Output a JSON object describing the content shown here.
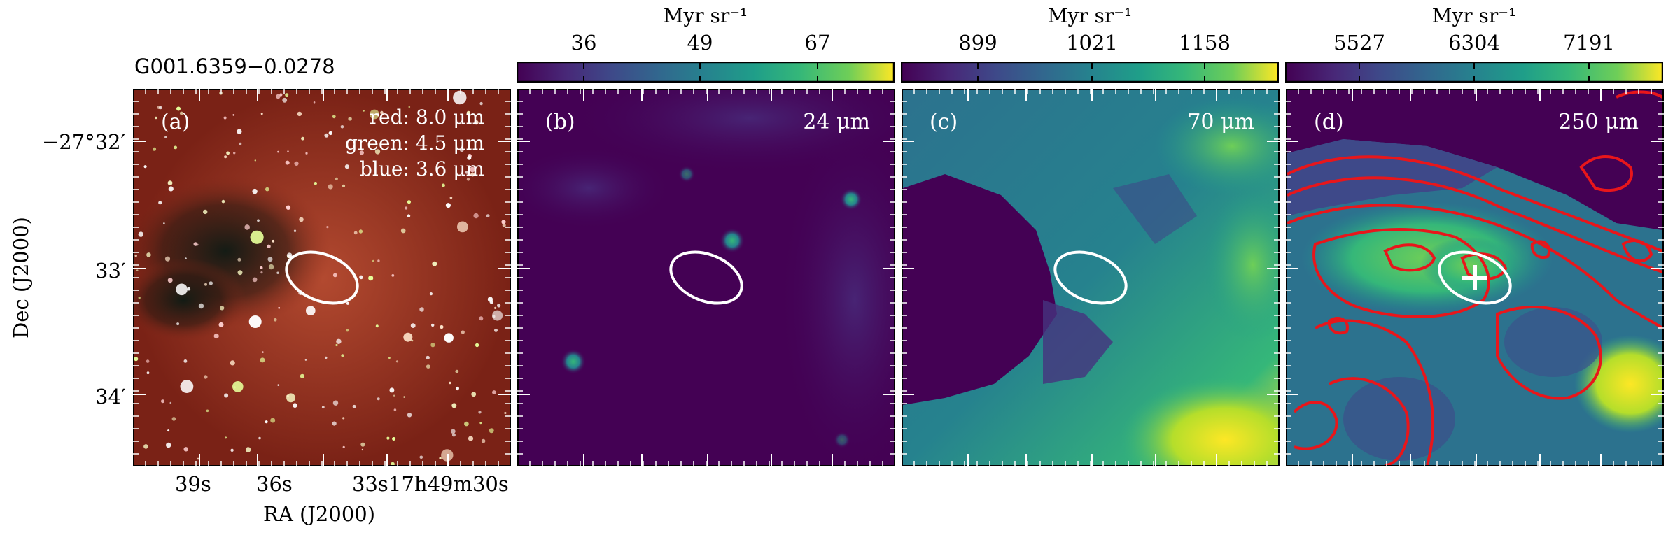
{
  "figure": {
    "source_name": "G001.6359−0.0278",
    "x_axis_label": "RA (J2000)",
    "y_axis_label": "Dec (J2000)",
    "ra_ticks": [
      "39s",
      "36s",
      "33s",
      "17h49m30s"
    ],
    "dec_ticks": [
      "−27°32′",
      "33′",
      "34′"
    ]
  },
  "panels": [
    {
      "id": "a",
      "label": "(a)",
      "legend": [
        "red: 8.0 μm",
        "green: 4.5 μm",
        "blue: 3.6 μm"
      ],
      "colors": {
        "background": "#8a2a1a",
        "ellipse": "#ffffff"
      }
    },
    {
      "id": "b",
      "label": "(b)",
      "wavelength": "24 μm",
      "colorbar": {
        "unit": "Myr sr⁻¹",
        "ticks": [
          "36",
          "49",
          "67"
        ]
      },
      "colors": {
        "background": "#440154",
        "ellipse": "#ffffff"
      }
    },
    {
      "id": "c",
      "label": "(c)",
      "wavelength": "70 μm",
      "colorbar": {
        "unit": "Myr sr⁻¹",
        "ticks": [
          "899",
          "1021",
          "1158"
        ]
      },
      "colors": {
        "background": "#440154",
        "ellipse": "#ffffff"
      }
    },
    {
      "id": "d",
      "label": "(d)",
      "wavelength": "250 μm",
      "colorbar": {
        "unit": "Myr sr⁻¹",
        "ticks": [
          "5527",
          "6304",
          "7191"
        ]
      },
      "colors": {
        "background": "#2c728e",
        "contour": "#e8161b",
        "ellipse": "#ffffff",
        "cross": "#ffffff"
      }
    }
  ]
}
